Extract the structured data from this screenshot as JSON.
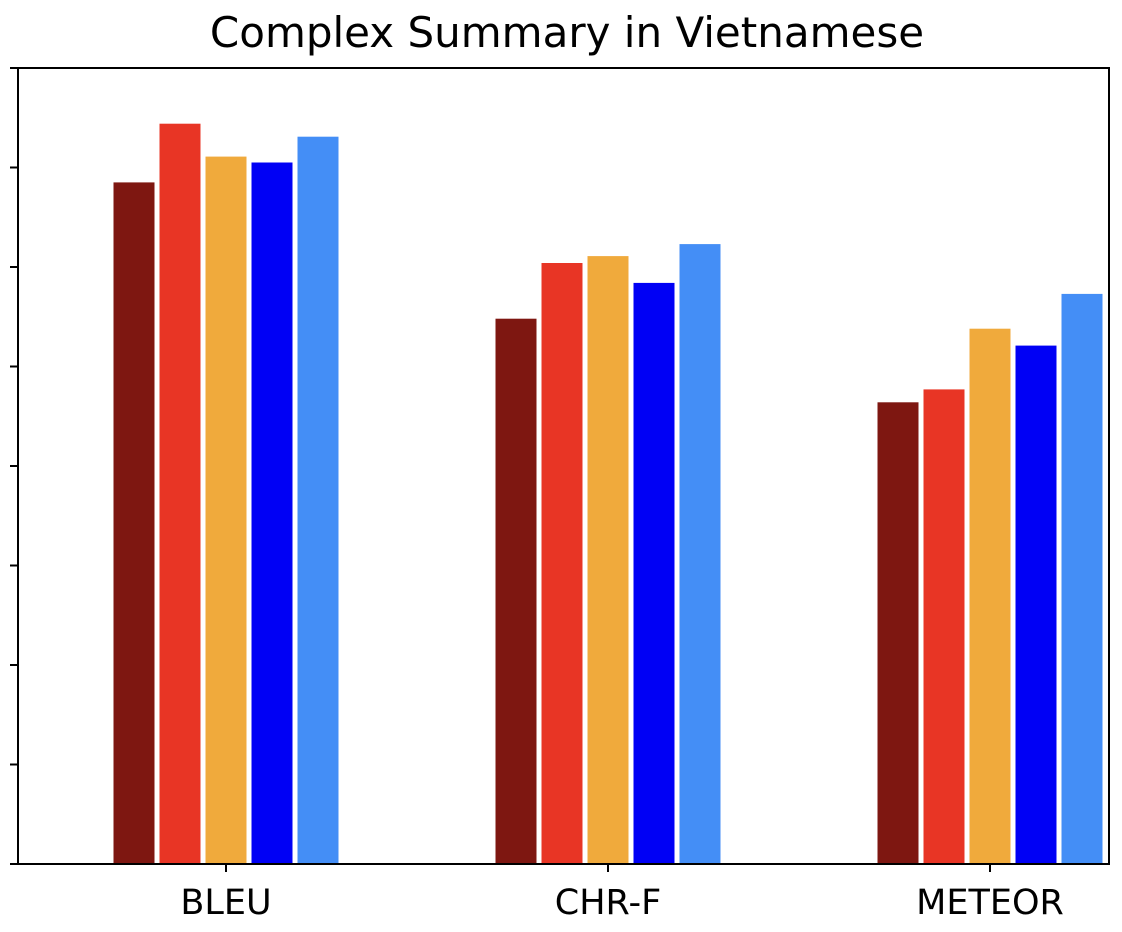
{
  "chart_data": {
    "type": "bar",
    "title": "Complex Summary in Vietnamese",
    "xlabel": "",
    "ylabel": "",
    "categories": [
      "BLEU",
      "CHR-F",
      "METEOR"
    ],
    "ylim": [
      0,
      0.8
    ],
    "yticks": [
      0,
      0.1,
      0.2,
      0.3,
      0.4,
      0.5,
      0.6,
      0.7,
      0.8
    ],
    "show_ytick_labels": false,
    "grid": false,
    "legend": "none",
    "series": [
      {
        "color": "#7E1711",
        "values": [
          0.685,
          0.548,
          0.464
        ]
      },
      {
        "color": "#E83525",
        "values": [
          0.744,
          0.604,
          0.477
        ]
      },
      {
        "color": "#F0AA3C",
        "values": [
          0.711,
          0.611,
          0.538
        ]
      },
      {
        "color": "#0000F5",
        "values": [
          0.705,
          0.584,
          0.521
        ]
      },
      {
        "color": "#448EF6",
        "values": [
          0.731,
          0.623,
          0.573
        ]
      }
    ]
  }
}
